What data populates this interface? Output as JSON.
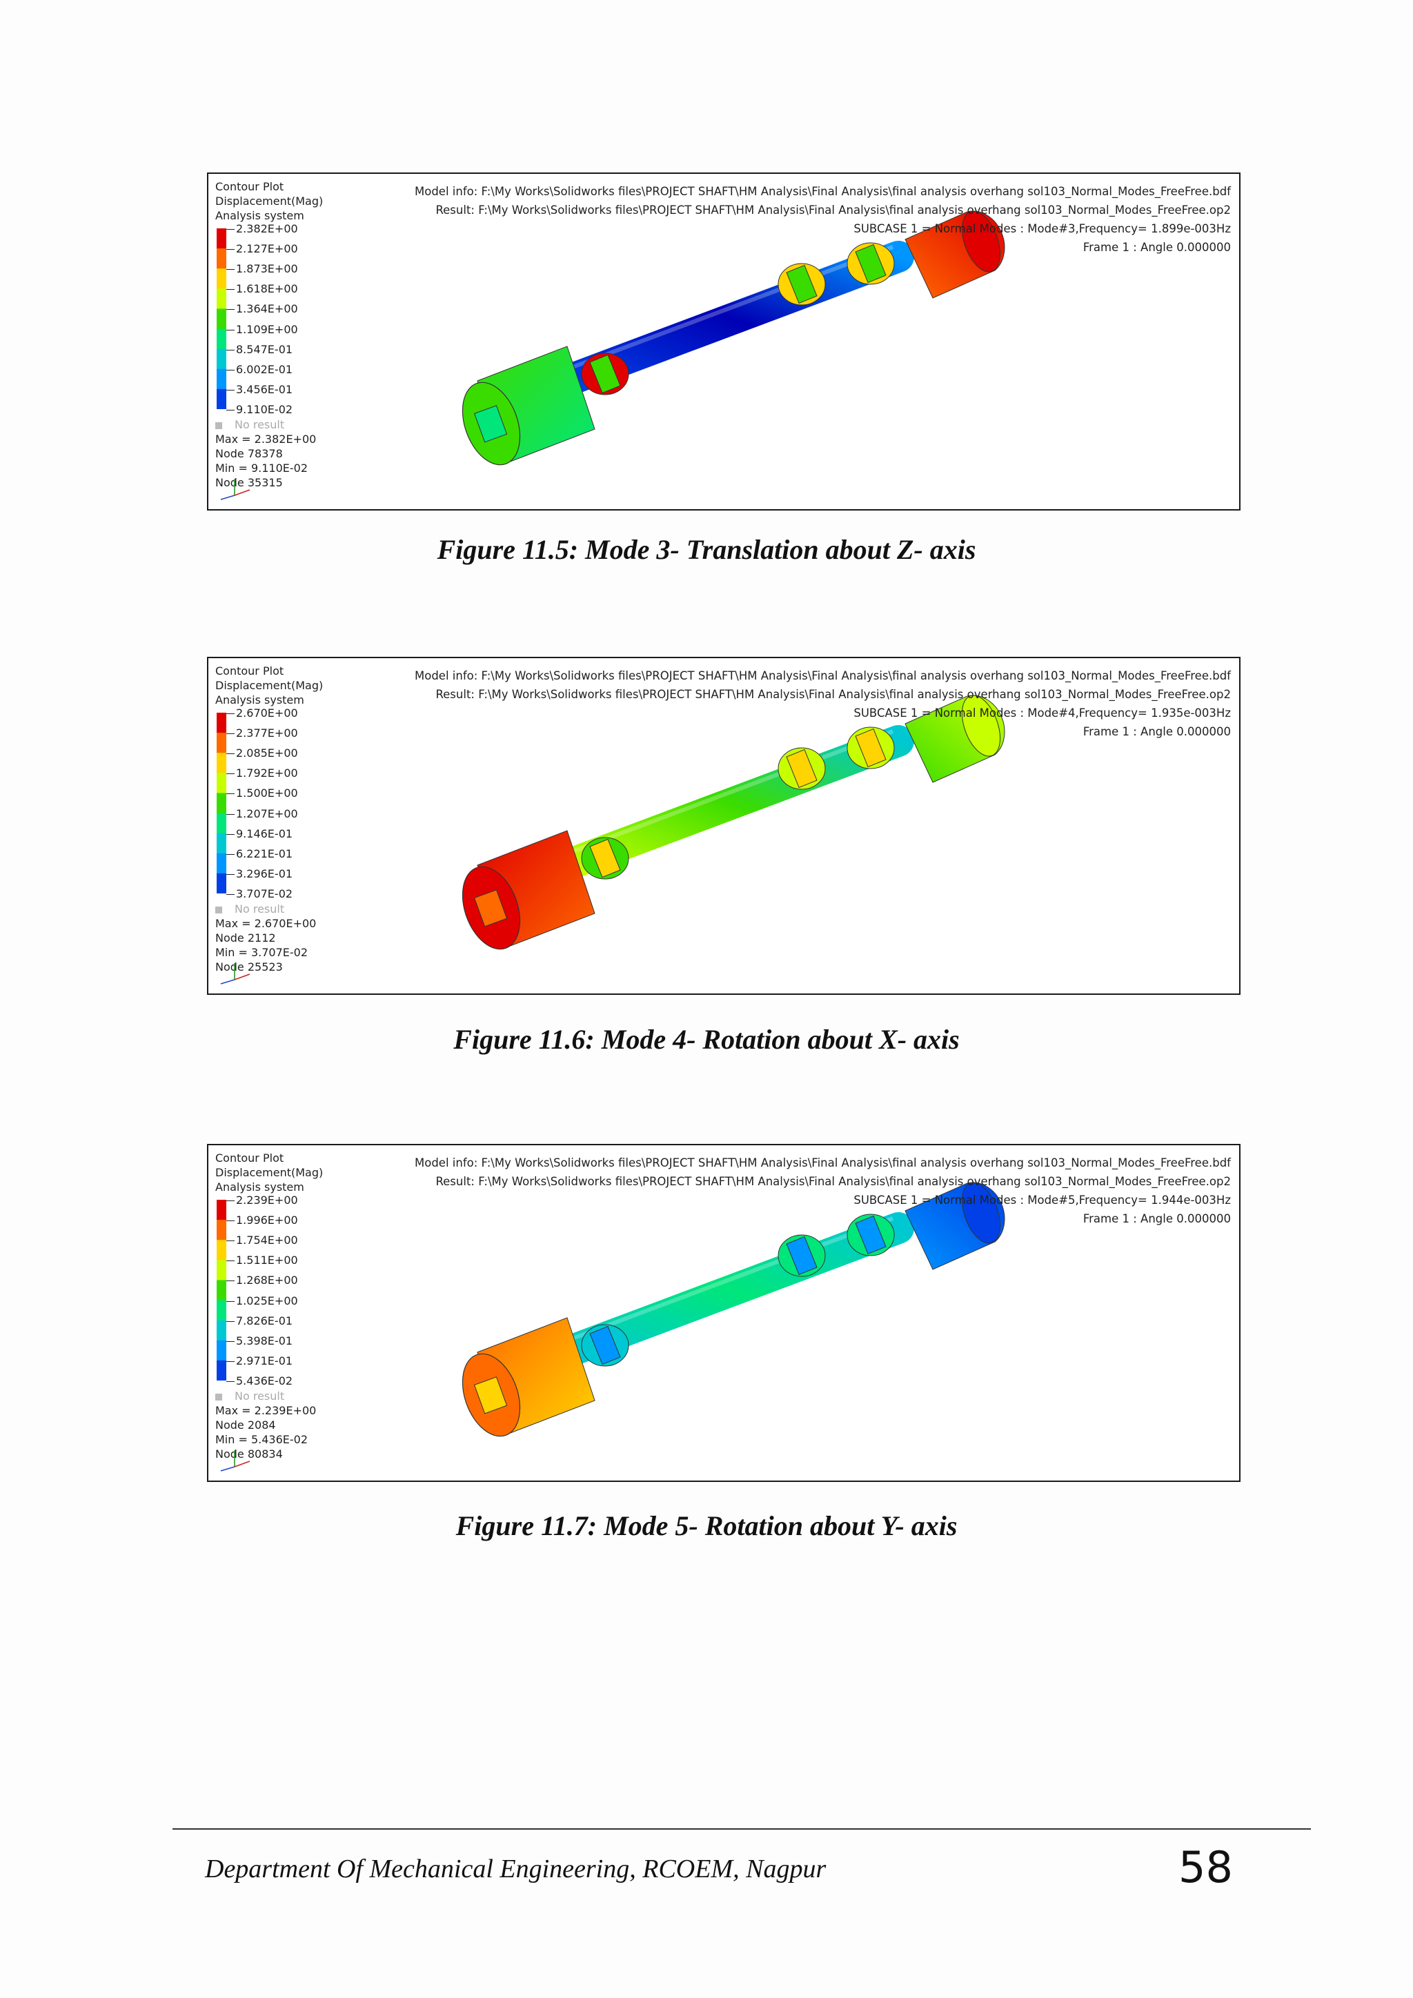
{
  "figures": [
    {
      "legend": {
        "title": "Contour Plot",
        "quantity": "Displacement(Mag)",
        "system": "Analysis system",
        "ticks": [
          "2.382E+00",
          "2.127E+00",
          "1.873E+00",
          "1.618E+00",
          "1.364E+00",
          "1.109E+00",
          "8.547E-01",
          "6.002E-01",
          "3.456E-01",
          "9.110E-02"
        ],
        "no_result": "No result",
        "max": "Max = 2.382E+00",
        "max_node": "Node 78378",
        "min": "Min = 9.110E-02",
        "min_node": "Node 35315"
      },
      "info": {
        "model": "Model info: F:\\My Works\\Solidworks files\\PROJECT SHAFT\\HM Analysis\\Final Analysis\\final analysis overhang sol103_Normal_Modes_FreeFree.bdf",
        "result": "Result: F:\\My Works\\Solidworks files\\PROJECT SHAFT\\HM Analysis\\Final Analysis\\final analysis overhang sol103_Normal_Modes_FreeFree.op2",
        "subcase": "SUBCASE 1 = Normal Modes : Mode#3,Frequency= 1.899e-003Hz",
        "frame": "Frame 1 : Angle 0.000000"
      },
      "caption": "Figure 11.5: Mode 3- Translation about Z- axis",
      "mode": 3
    },
    {
      "legend": {
        "title": "Contour Plot",
        "quantity": "Displacement(Mag)",
        "system": "Analysis system",
        "ticks": [
          "2.670E+00",
          "2.377E+00",
          "2.085E+00",
          "1.792E+00",
          "1.500E+00",
          "1.207E+00",
          "9.146E-01",
          "6.221E-01",
          "3.296E-01",
          "3.707E-02"
        ],
        "no_result": "No result",
        "max": "Max = 2.670E+00",
        "max_node": "Node 2112",
        "min": "Min = 3.707E-02",
        "min_node": "Node 25523"
      },
      "info": {
        "model": "Model info: F:\\My Works\\Solidworks files\\PROJECT SHAFT\\HM Analysis\\Final Analysis\\final analysis overhang sol103_Normal_Modes_FreeFree.bdf",
        "result": "Result: F:\\My Works\\Solidworks files\\PROJECT SHAFT\\HM Analysis\\Final Analysis\\final analysis overhang sol103_Normal_Modes_FreeFree.op2",
        "subcase": "SUBCASE 1 = Normal Modes : Mode#4,Frequency= 1.935e-003Hz",
        "frame": "Frame 1 : Angle 0.000000"
      },
      "caption": "Figure 11.6: Mode 4- Rotation about X- axis",
      "mode": 4
    },
    {
      "legend": {
        "title": "Contour Plot",
        "quantity": "Displacement(Mag)",
        "system": "Analysis system",
        "ticks": [
          "2.239E+00",
          "1.996E+00",
          "1.754E+00",
          "1.511E+00",
          "1.268E+00",
          "1.025E+00",
          "7.826E-01",
          "5.398E-01",
          "2.971E-01",
          "5.436E-02"
        ],
        "no_result": "No result",
        "max": "Max = 2.239E+00",
        "max_node": "Node 2084",
        "min": "Min = 5.436E-02",
        "min_node": "Node 80834"
      },
      "info": {
        "model": "Model info: F:\\My Works\\Solidworks files\\PROJECT SHAFT\\HM Analysis\\Final Analysis\\final analysis overhang sol103_Normal_Modes_FreeFree.bdf",
        "result": "Result: F:\\My Works\\Solidworks files\\PROJECT SHAFT\\HM Analysis\\Final Analysis\\final analysis overhang sol103_Normal_Modes_FreeFree.op2",
        "subcase": "SUBCASE 1 = Normal Modes : Mode#5,Frequency= 1.944e-003Hz",
        "frame": "Frame 1 : Angle 0.000000"
      },
      "caption": "Figure 11.7: Mode 5- Rotation about Y- axis",
      "mode": 5
    }
  ],
  "footer": {
    "department": "Department Of Mechanical Engineering, RCOEM, Nagpur",
    "page_number": "58"
  },
  "colors": {
    "contour": [
      "#e00000",
      "#ff6a00",
      "#ffd400",
      "#c8ff00",
      "#3adc00",
      "#00e67a",
      "#00c8d2",
      "#0096ff",
      "#0040e6",
      "#0000b4"
    ]
  }
}
